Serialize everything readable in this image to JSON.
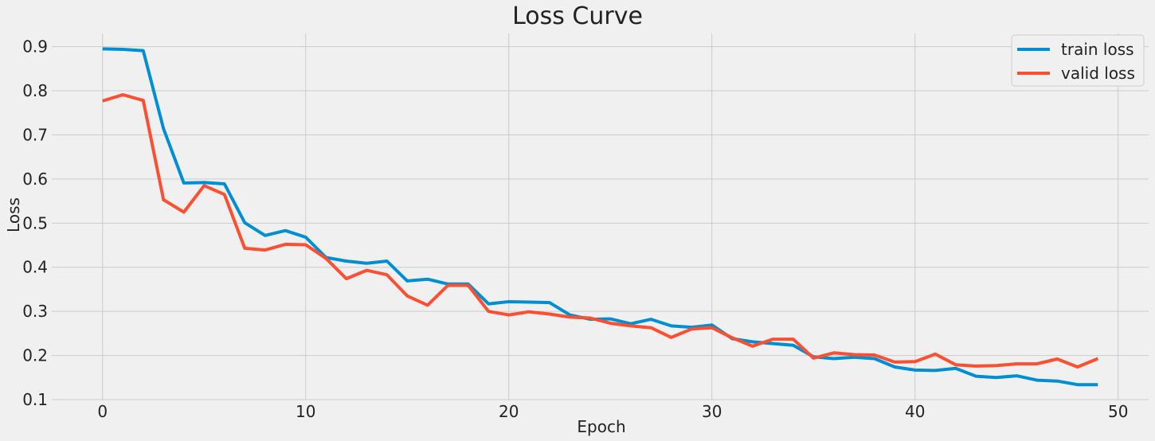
{
  "chart_data": {
    "type": "line",
    "title": "Loss Curve",
    "xlabel": "Epoch",
    "ylabel": "Loss",
    "xlim": [
      -2.5,
      51.5
    ],
    "ylim": [
      0.1,
      0.93
    ],
    "xticks": [
      0,
      10,
      20,
      30,
      40,
      50
    ],
    "yticks": [
      0.1,
      0.2,
      0.3,
      0.4,
      0.5,
      0.6,
      0.7,
      0.8,
      0.9
    ],
    "grid": true,
    "legend_position": "top-right",
    "x": [
      0,
      1,
      2,
      3,
      4,
      5,
      6,
      7,
      8,
      9,
      10,
      11,
      12,
      13,
      14,
      15,
      16,
      17,
      18,
      19,
      20,
      21,
      22,
      23,
      24,
      25,
      26,
      27,
      28,
      29,
      30,
      31,
      32,
      33,
      34,
      35,
      36,
      37,
      38,
      39,
      40,
      41,
      42,
      43,
      44,
      45,
      46,
      47,
      48,
      49
    ],
    "series": [
      {
        "name": "train loss",
        "color": "#008fd5",
        "values": [
          0.895,
          0.894,
          0.891,
          0.714,
          0.591,
          0.592,
          0.589,
          0.501,
          0.472,
          0.483,
          0.468,
          0.422,
          0.414,
          0.409,
          0.414,
          0.369,
          0.373,
          0.362,
          0.362,
          0.317,
          0.322,
          0.321,
          0.32,
          0.292,
          0.282,
          0.283,
          0.272,
          0.282,
          0.267,
          0.264,
          0.269,
          0.238,
          0.231,
          0.227,
          0.223,
          0.197,
          0.193,
          0.196,
          0.193,
          0.174,
          0.167,
          0.166,
          0.171,
          0.153,
          0.15,
          0.154,
          0.144,
          0.142,
          0.134,
          0.134
        ]
      },
      {
        "name": "valid loss",
        "color": "#fc4f30",
        "values": [
          0.777,
          0.791,
          0.778,
          0.553,
          0.525,
          0.585,
          0.565,
          0.443,
          0.439,
          0.452,
          0.451,
          0.42,
          0.374,
          0.393,
          0.383,
          0.335,
          0.314,
          0.359,
          0.359,
          0.3,
          0.292,
          0.299,
          0.294,
          0.287,
          0.285,
          0.273,
          0.267,
          0.263,
          0.241,
          0.26,
          0.263,
          0.24,
          0.221,
          0.237,
          0.237,
          0.194,
          0.206,
          0.202,
          0.201,
          0.185,
          0.186,
          0.203,
          0.179,
          0.176,
          0.177,
          0.181,
          0.181,
          0.192,
          0.174,
          0.193
        ]
      }
    ]
  }
}
